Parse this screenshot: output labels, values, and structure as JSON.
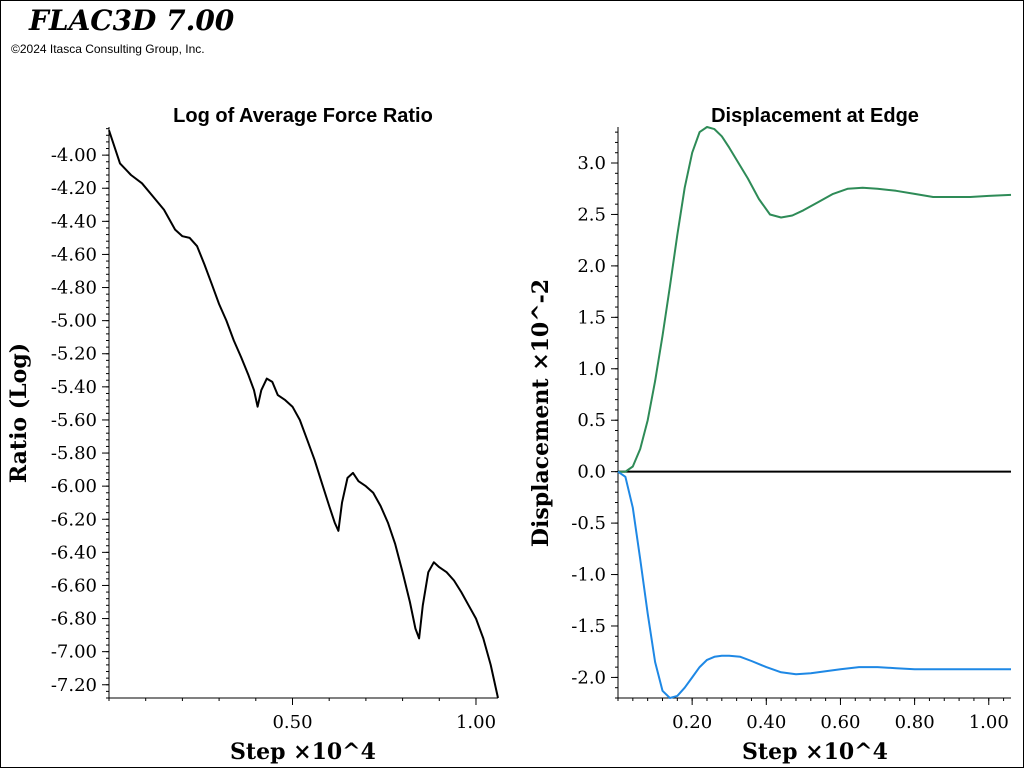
{
  "app": {
    "title": "FLAC3D 7.00",
    "copyright": "©2024 Itasca Consulting Group, Inc."
  },
  "colors": {
    "force_ratio": "#000000",
    "edge_x": "#2e8b57",
    "edge_y": "#1e88e5",
    "zero_line": "#000000"
  },
  "chart_data": [
    {
      "type": "line",
      "title": "Log of Average Force Ratio",
      "xlabel": "Step ×10^4",
      "ylabel": "Ratio (Log)",
      "xlim": [
        0.0,
        1.06
      ],
      "ylim": [
        -7.28,
        -3.83
      ],
      "xticks": [
        {
          "value": 0.5,
          "label": "0.50"
        },
        {
          "value": 1.0,
          "label": "1.00"
        }
      ],
      "yticks": [
        {
          "value": -4.0,
          "label": "-4.00"
        },
        {
          "value": -4.2,
          "label": "-4.20"
        },
        {
          "value": -4.4,
          "label": "-4.40"
        },
        {
          "value": -4.6,
          "label": "-4.60"
        },
        {
          "value": -4.8,
          "label": "-4.80"
        },
        {
          "value": -5.0,
          "label": "-5.00"
        },
        {
          "value": -5.2,
          "label": "-5.20"
        },
        {
          "value": -5.4,
          "label": "-5.40"
        },
        {
          "value": -5.6,
          "label": "-5.60"
        },
        {
          "value": -5.8,
          "label": "-5.80"
        },
        {
          "value": -6.0,
          "label": "-6.00"
        },
        {
          "value": -6.2,
          "label": "-6.20"
        },
        {
          "value": -6.4,
          "label": "-6.40"
        },
        {
          "value": -6.6,
          "label": "-6.60"
        },
        {
          "value": -6.8,
          "label": "-6.80"
        },
        {
          "value": -7.0,
          "label": "-7.00"
        },
        {
          "value": -7.2,
          "label": "-7.20"
        }
      ],
      "grid": false,
      "series": [
        {
          "color": "#000000",
          "x": [
            0.0,
            0.03,
            0.06,
            0.09,
            0.12,
            0.15,
            0.18,
            0.2,
            0.22,
            0.24,
            0.26,
            0.28,
            0.3,
            0.32,
            0.34,
            0.36,
            0.38,
            0.395,
            0.405,
            0.415,
            0.43,
            0.445,
            0.46,
            0.48,
            0.5,
            0.52,
            0.54,
            0.56,
            0.58,
            0.6,
            0.615,
            0.625,
            0.635,
            0.65,
            0.665,
            0.68,
            0.7,
            0.72,
            0.74,
            0.76,
            0.78,
            0.8,
            0.82,
            0.835,
            0.845,
            0.855,
            0.87,
            0.885,
            0.9,
            0.92,
            0.94,
            0.96,
            0.98,
            1.0,
            1.02,
            1.04,
            1.06
          ],
          "y": [
            -3.85,
            -4.05,
            -4.12,
            -4.17,
            -4.25,
            -4.33,
            -4.45,
            -4.49,
            -4.5,
            -4.55,
            -4.66,
            -4.78,
            -4.9,
            -5.0,
            -5.12,
            -5.22,
            -5.33,
            -5.42,
            -5.52,
            -5.42,
            -5.35,
            -5.37,
            -5.45,
            -5.48,
            -5.52,
            -5.6,
            -5.72,
            -5.84,
            -5.98,
            -6.12,
            -6.22,
            -6.27,
            -6.1,
            -5.95,
            -5.92,
            -5.97,
            -6.0,
            -6.04,
            -6.12,
            -6.22,
            -6.35,
            -6.52,
            -6.7,
            -6.86,
            -6.92,
            -6.72,
            -6.52,
            -6.46,
            -6.49,
            -6.52,
            -6.57,
            -6.64,
            -6.72,
            -6.8,
            -6.92,
            -7.08,
            -7.28
          ]
        }
      ]
    },
    {
      "type": "line",
      "title": "Displacement at Edge",
      "xlabel": "Step ×10^4",
      "ylabel": "Displacement ×10^-2",
      "xlim": [
        0.0,
        1.06
      ],
      "ylim": [
        -2.2,
        3.35
      ],
      "xticks": [
        {
          "value": 0.2,
          "label": "0.20"
        },
        {
          "value": 0.4,
          "label": "0.40"
        },
        {
          "value": 0.6,
          "label": "0.60"
        },
        {
          "value": 0.8,
          "label": "0.80"
        },
        {
          "value": 1.0,
          "label": "1.00"
        }
      ],
      "yticks": [
        {
          "value": 3.0,
          "label": "3.0"
        },
        {
          "value": 2.5,
          "label": "2.5"
        },
        {
          "value": 2.0,
          "label": "2.0"
        },
        {
          "value": 1.5,
          "label": "1.5"
        },
        {
          "value": 1.0,
          "label": "1.0"
        },
        {
          "value": 0.5,
          "label": "0.5"
        },
        {
          "value": 0.0,
          "label": "0.0"
        },
        {
          "value": -0.5,
          "label": "-0.5"
        },
        {
          "value": -1.0,
          "label": "-1.0"
        },
        {
          "value": -1.5,
          "label": "-1.5"
        },
        {
          "value": -2.0,
          "label": "-2.0"
        }
      ],
      "grid": false,
      "series": [
        {
          "color": "#2e8b57",
          "x": [
            0.0,
            0.02,
            0.04,
            0.06,
            0.08,
            0.1,
            0.12,
            0.14,
            0.16,
            0.18,
            0.2,
            0.22,
            0.24,
            0.26,
            0.28,
            0.3,
            0.32,
            0.35,
            0.38,
            0.41,
            0.44,
            0.47,
            0.5,
            0.54,
            0.58,
            0.62,
            0.66,
            0.7,
            0.75,
            0.8,
            0.85,
            0.9,
            0.95,
            1.0,
            1.06
          ],
          "y": [
            0.0,
            0.0,
            0.05,
            0.22,
            0.5,
            0.88,
            1.32,
            1.8,
            2.3,
            2.76,
            3.1,
            3.3,
            3.35,
            3.33,
            3.26,
            3.15,
            3.03,
            2.85,
            2.65,
            2.5,
            2.47,
            2.49,
            2.54,
            2.62,
            2.7,
            2.75,
            2.76,
            2.75,
            2.73,
            2.7,
            2.67,
            2.67,
            2.67,
            2.68,
            2.69
          ]
        },
        {
          "color": "#1e88e5",
          "x": [
            0.0,
            0.02,
            0.04,
            0.06,
            0.08,
            0.1,
            0.12,
            0.14,
            0.16,
            0.18,
            0.2,
            0.22,
            0.24,
            0.26,
            0.28,
            0.3,
            0.33,
            0.36,
            0.4,
            0.44,
            0.48,
            0.52,
            0.56,
            0.6,
            0.65,
            0.7,
            0.75,
            0.8,
            0.85,
            0.9,
            0.95,
            1.0,
            1.06
          ],
          "y": [
            0.0,
            -0.05,
            -0.35,
            -0.85,
            -1.38,
            -1.85,
            -2.13,
            -2.2,
            -2.18,
            -2.1,
            -2.0,
            -1.9,
            -1.83,
            -1.8,
            -1.79,
            -1.79,
            -1.8,
            -1.84,
            -1.9,
            -1.95,
            -1.97,
            -1.96,
            -1.94,
            -1.92,
            -1.9,
            -1.9,
            -1.91,
            -1.92,
            -1.92,
            -1.92,
            -1.92,
            -1.92,
            -1.92
          ]
        }
      ],
      "reference_line": {
        "y": 0.0,
        "color": "#000000"
      }
    }
  ]
}
